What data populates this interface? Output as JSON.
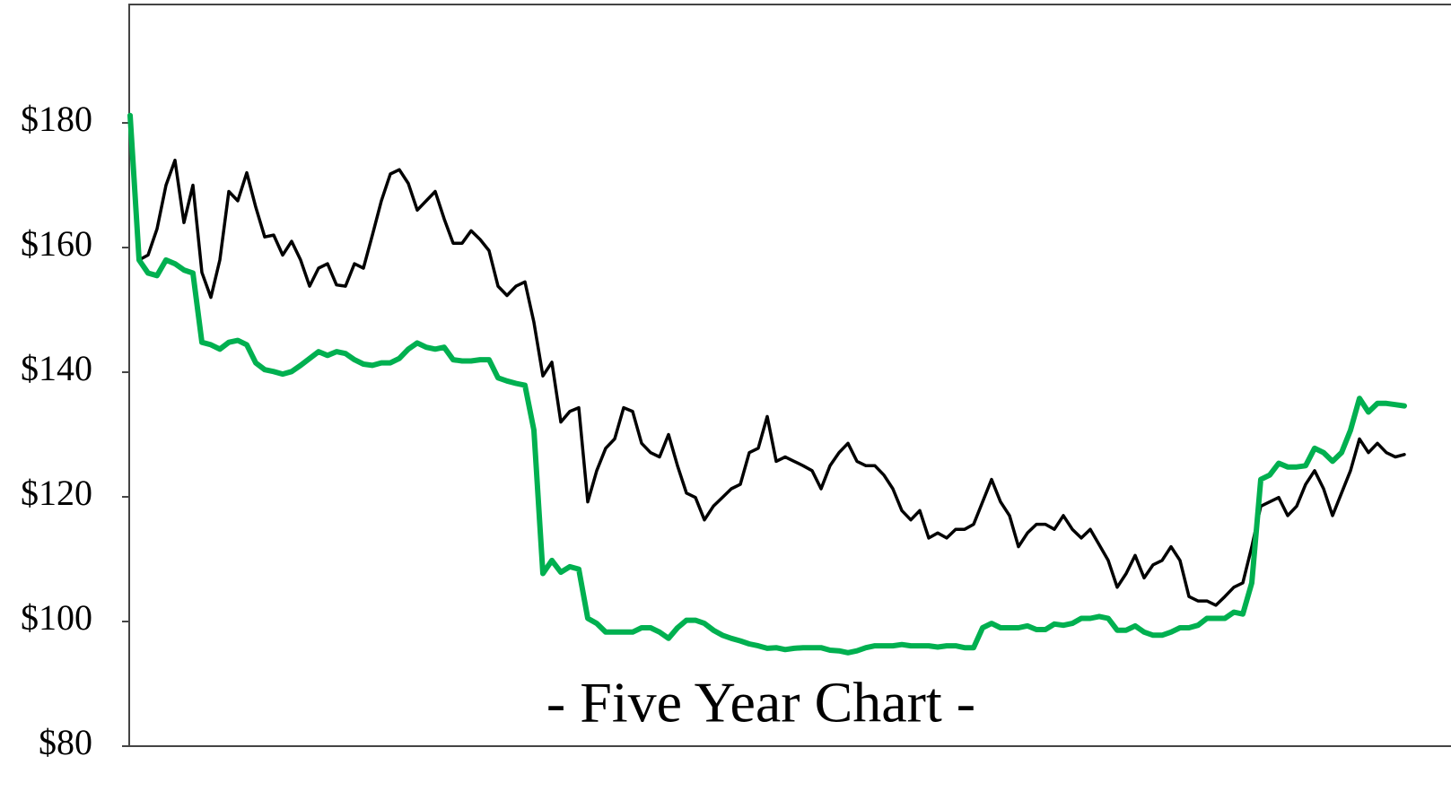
{
  "chart_data": {
    "type": "line",
    "annotation": "- Five Year Chart -",
    "ylim": [
      80,
      199
    ],
    "yticks": [
      {
        "value": 80,
        "label": "$80"
      },
      {
        "value": 100,
        "label": "$100"
      },
      {
        "value": 120,
        "label": "$120"
      },
      {
        "value": 140,
        "label": "$140"
      },
      {
        "value": 160,
        "label": "$160"
      },
      {
        "value": 180,
        "label": "$180"
      }
    ],
    "series": [
      {
        "color": "#000000",
        "values": [
          null,
          158,
          158.8,
          163,
          170,
          174,
          164,
          170,
          156,
          152,
          158,
          169,
          167.5,
          172,
          166.5,
          161.7,
          162,
          158.8,
          161,
          158,
          153.8,
          156.7,
          157.4,
          154,
          153.8,
          157.4,
          156.7,
          162,
          167.5,
          171.8,
          172.5,
          170.3,
          166,
          167.5,
          169,
          164.6,
          160.7,
          160.7,
          162.7,
          161.3,
          159.5,
          153.8,
          152.3,
          153.8,
          154.5,
          148,
          139.4,
          141.6,
          132,
          133.7,
          134.3,
          119.2,
          124.2,
          127.8,
          129.3,
          134.3,
          133.7,
          128.6,
          127.1,
          126.4,
          130,
          125,
          120.6,
          119.9,
          116.3,
          118.5,
          119.9,
          121.3,
          122,
          127.1,
          127.8,
          132.9,
          125.7,
          126.4,
          125.7,
          125,
          124.2,
          121.3,
          125,
          127.1,
          128.6,
          125.7,
          125,
          125,
          123.5,
          121.3,
          117.8,
          116.3,
          117.8,
          113.4,
          114.2,
          113.4,
          114.8,
          114.8,
          115.6,
          119.2,
          122.8,
          119.2,
          117,
          112,
          114.2,
          115.6,
          115.6,
          114.8,
          117,
          114.8,
          113.4,
          114.8,
          112.3,
          109.8,
          105.5,
          107.7,
          110.6,
          107,
          109.1,
          109.8,
          112,
          109.8,
          104,
          103.3,
          103.3,
          102.6,
          104,
          105.5,
          106.2,
          112,
          118.5,
          119.2,
          119.9,
          117,
          118.5,
          122,
          124.2,
          121.3,
          117,
          120.6,
          124.2,
          129.3,
          127.1,
          128.6,
          127.1,
          126.4,
          126.8
        ]
      },
      {
        "color": "#00b050",
        "values": [
          181.2,
          158,
          155.9,
          155.5,
          158,
          157.4,
          156.4,
          155.9,
          144.8,
          144.4,
          143.7,
          144.8,
          145.1,
          144.4,
          141.5,
          140.4,
          140.1,
          139.7,
          140.1,
          141.1,
          142.2,
          143.3,
          142.7,
          143.3,
          143,
          142,
          141.3,
          141.1,
          141.5,
          141.5,
          142.2,
          143.7,
          144.7,
          144,
          143.7,
          144,
          142,
          141.8,
          141.8,
          142,
          142,
          139.1,
          138.6,
          138.2,
          137.9,
          130.7,
          107.7,
          109.8,
          107.9,
          108.8,
          108.4,
          100.5,
          99.7,
          98.3,
          98.3,
          98.3,
          98.3,
          99,
          99,
          98.3,
          97.3,
          99,
          100.2,
          100.2,
          99.7,
          98.6,
          97.8,
          97.3,
          96.9,
          96.4,
          96.1,
          95.7,
          95.8,
          95.5,
          95.7,
          95.8,
          95.8,
          95.8,
          95.4,
          95.3,
          95,
          95.3,
          95.8,
          96.1,
          96.1,
          96.1,
          96.3,
          96.1,
          96.1,
          96.1,
          95.9,
          96.1,
          96.1,
          95.8,
          95.8,
          99,
          99.7,
          99,
          99,
          99,
          99.3,
          98.7,
          98.7,
          99.6,
          99.4,
          99.7,
          100.5,
          100.5,
          100.8,
          100.5,
          98.6,
          98.6,
          99.3,
          98.3,
          97.8,
          97.8,
          98.3,
          99,
          99,
          99.4,
          100.5,
          100.5,
          100.5,
          101.5,
          101.2,
          106.2,
          122.8,
          123.5,
          125.4,
          124.8,
          124.8,
          125,
          127.8,
          127.1,
          125.7,
          127.1,
          130.7,
          135.8,
          133.6,
          135,
          135,
          134.8,
          134.6
        ]
      }
    ]
  }
}
